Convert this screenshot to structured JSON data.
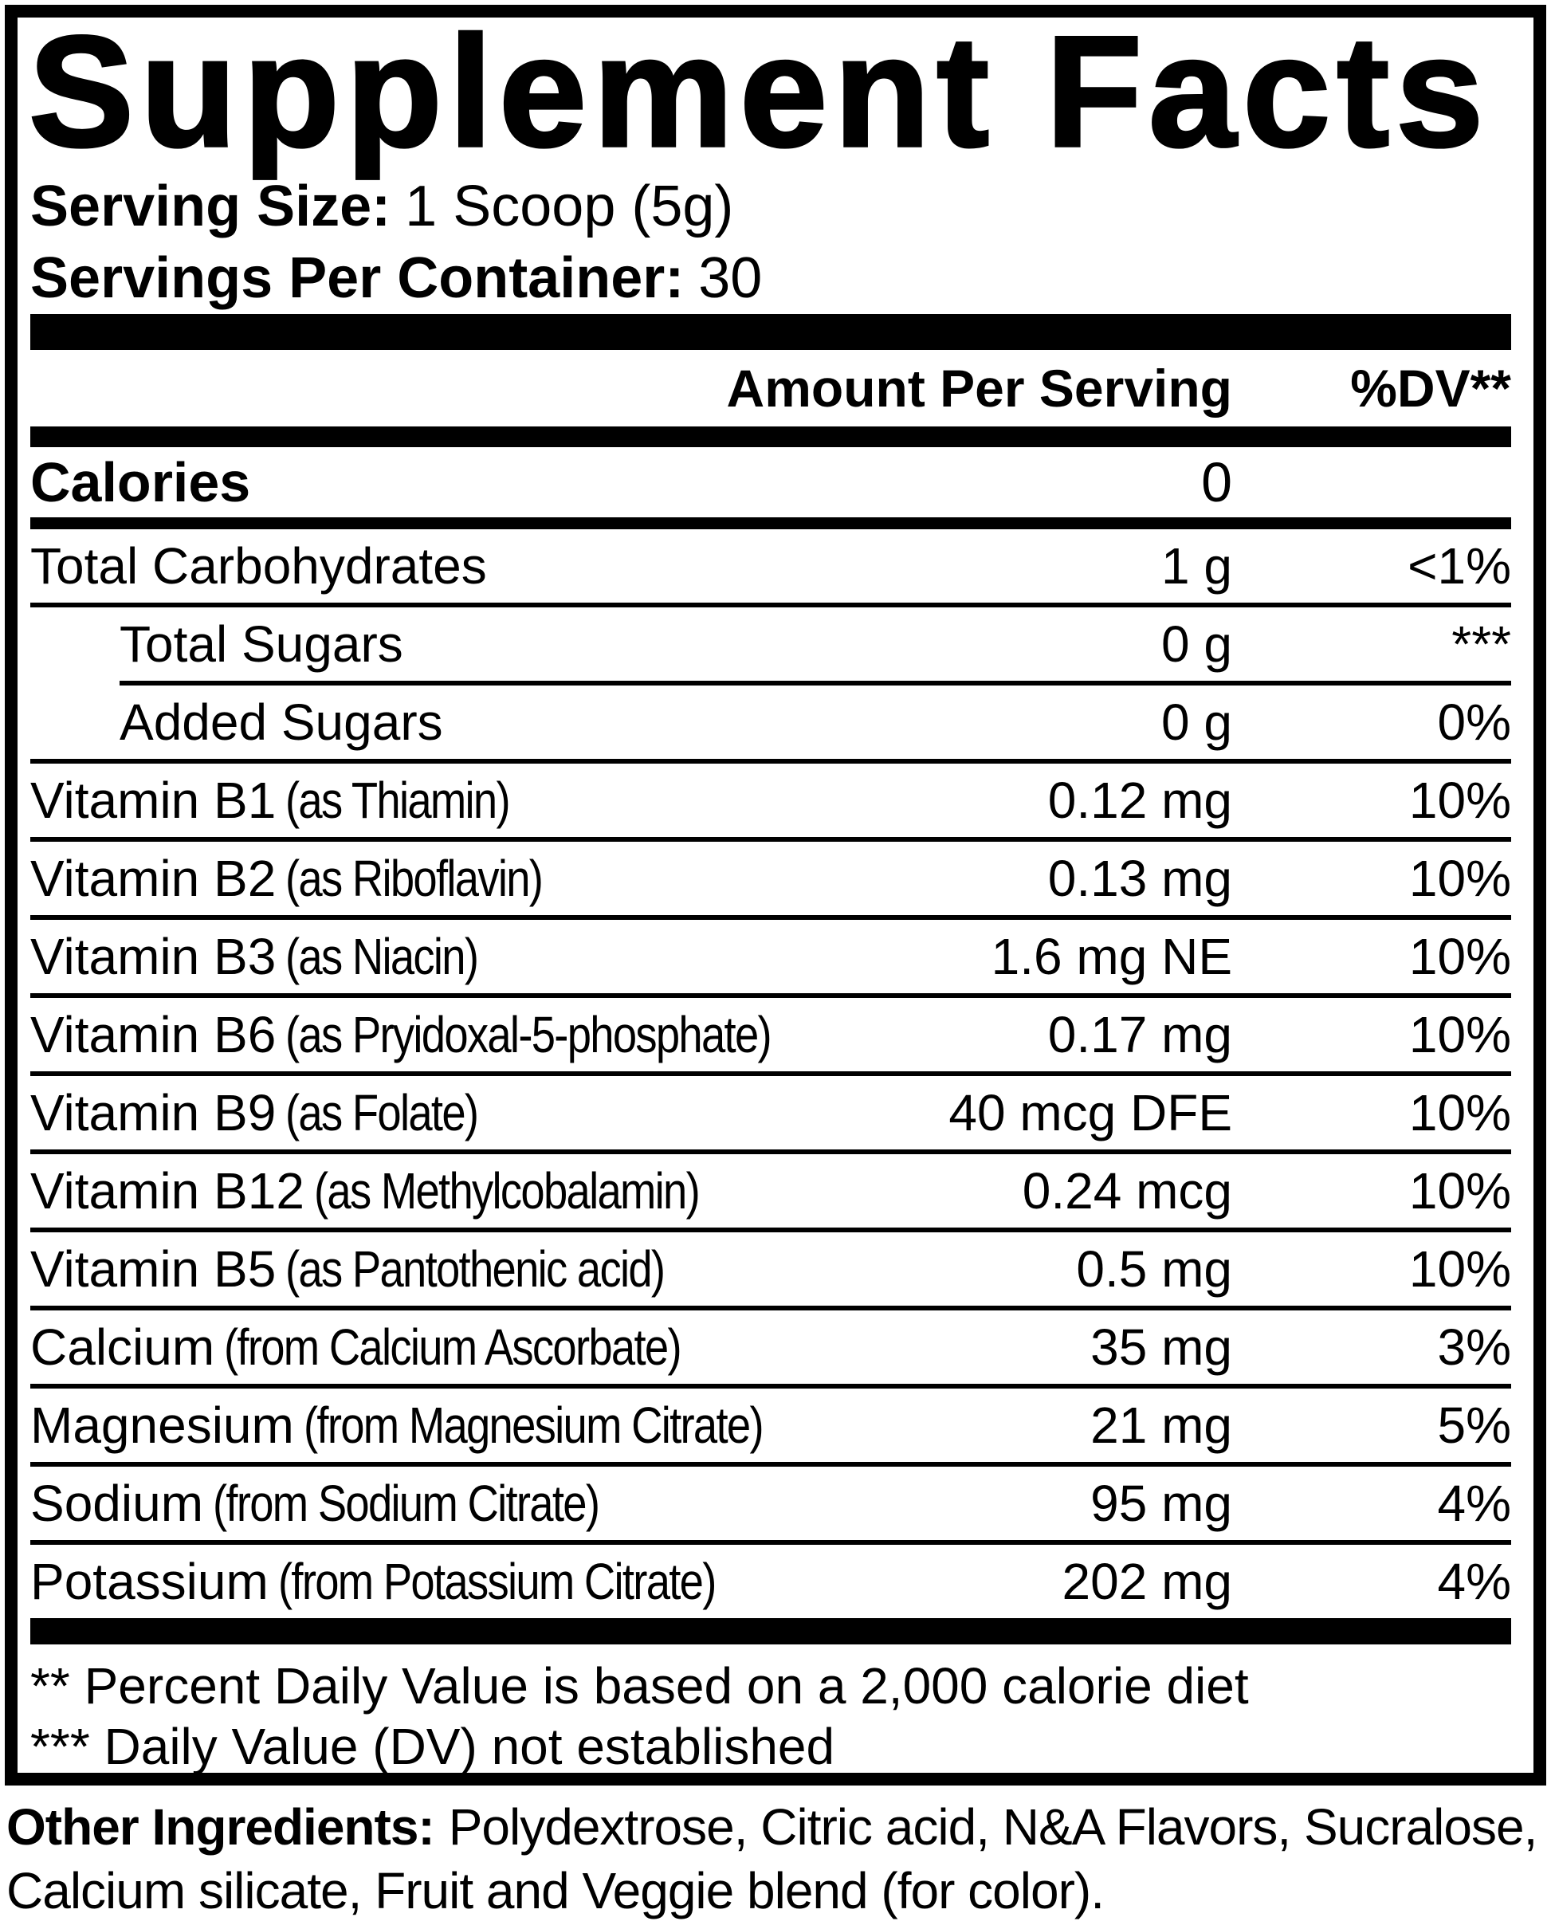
{
  "label": {
    "title": "Supplement Facts",
    "serving_size_label": "Serving Size:",
    "serving_size_value": "1 Scoop (5g)",
    "servings_per_container_label": "Servings Per Container:",
    "servings_per_container_value": "30",
    "header": {
      "amount": "Amount Per Serving",
      "dv": "%DV**"
    },
    "calories": {
      "name": "Calories",
      "amount": "0"
    },
    "rows": [
      {
        "name": "Total Carbohydrates",
        "sub": "",
        "amount": "1 g",
        "dv": "<1%"
      },
      {
        "name": "Total Sugars",
        "sub": "",
        "amount": "0 g",
        "dv": "***"
      },
      {
        "name": "Added Sugars",
        "sub": "",
        "amount": "0 g",
        "dv": "0%"
      },
      {
        "name": "Vitamin B1",
        "sub": "(as Thiamin)",
        "amount": "0.12 mg",
        "dv": "10%"
      },
      {
        "name": "Vitamin B2",
        "sub": "(as Riboflavin)",
        "amount": "0.13 mg",
        "dv": "10%"
      },
      {
        "name": "Vitamin B3",
        "sub": "(as Niacin)",
        "amount": "1.6 mg NE",
        "dv": "10%"
      },
      {
        "name": "Vitamin B6",
        "sub": "(as Pryidoxal-5-phosphate)",
        "amount": "0.17 mg",
        "dv": "10%"
      },
      {
        "name": "Vitamin B9",
        "sub": "(as Folate)",
        "amount": "40 mcg DFE",
        "dv": "10%"
      },
      {
        "name": "Vitamin B12",
        "sub": "(as Methylcobalamin)",
        "amount": "0.24 mcg",
        "dv": "10%"
      },
      {
        "name": "Vitamin B5",
        "sub": "(as Pantothenic acid)",
        "amount": "0.5 mg",
        "dv": "10%"
      },
      {
        "name": "Calcium",
        "sub": "(from Calcium Ascorbate)",
        "amount": "35 mg",
        "dv": "3%"
      },
      {
        "name": "Magnesium",
        "sub": "(from Magnesium Citrate)",
        "amount": "21 mg",
        "dv": "5%"
      },
      {
        "name": "Sodium",
        "sub": "(from Sodium Citrate)",
        "amount": "95 mg",
        "dv": "4%"
      },
      {
        "name": "Potassium",
        "sub": "(from Potassium Citrate)",
        "amount": "202 mg",
        "dv": "4%"
      }
    ],
    "footnotes": [
      "** Percent Daily Value is based on a 2,000 calorie diet",
      "*** Daily Value (DV) not established"
    ],
    "other_ingredients_label": "Other Ingredients:",
    "other_ingredients_value": "Polydextrose, Citric acid, N&A Flavors, Sucralose, Calcium silicate, Fruit and Veggie blend (for color)."
  },
  "colors": {
    "ink": "#000000",
    "paper": "#ffffff"
  }
}
